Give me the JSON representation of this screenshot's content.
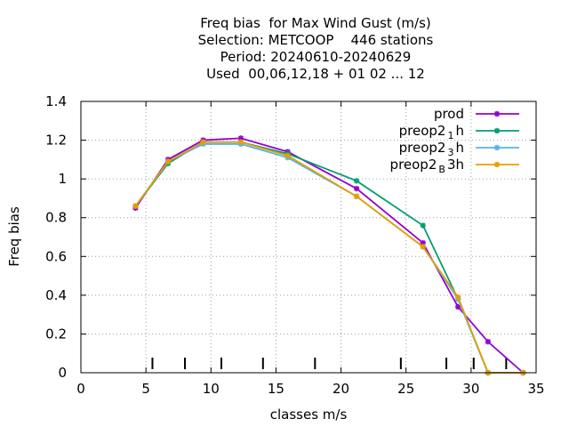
{
  "chart_data": {
    "type": "line",
    "title_lines": [
      "Freq bias  for Max Wind Gust (m/s)",
      "Selection: METCOOP    446 stations",
      "Period: 20240610-20240629",
      "Used  00,06,12,18 + 01 02 ... 12"
    ],
    "xlabel": "classes m/s",
    "ylabel": "Freq bias",
    "xlim": [
      0,
      35
    ],
    "ylim": [
      0,
      1.4
    ],
    "xticks": [
      "0",
      "5",
      "10",
      "15",
      "20",
      "25",
      "30",
      "35"
    ],
    "yticks": [
      "0",
      "0.2",
      "0.4",
      "0.6",
      "0.8",
      "1",
      "1.2",
      "1.4"
    ],
    "grid": true,
    "legend_position": "top-right",
    "class_marks": [
      5.5,
      8,
      10.8,
      14,
      18,
      24.6,
      28.1,
      30.2,
      32.7
    ],
    "series": [
      {
        "name": "prod",
        "color": "#9400d3",
        "x": [
          4.2,
          6.7,
          9.4,
          12.3,
          15.9,
          21.2,
          26.3,
          29.0,
          31.3,
          34.0
        ],
        "y": [
          0.85,
          1.1,
          1.2,
          1.21,
          1.14,
          0.95,
          0.67,
          0.34,
          0.16,
          0.0
        ]
      },
      {
        "name": "preop2",
        "sub": "1",
        "suffix": "h",
        "color": "#009e73",
        "x": [
          4.2,
          6.7,
          9.4,
          12.3,
          15.9,
          21.2,
          26.3,
          29.0,
          31.3,
          34.0
        ],
        "y": [
          0.86,
          1.08,
          1.19,
          1.19,
          1.13,
          0.99,
          0.76,
          0.38,
          0.0,
          0.0
        ]
      },
      {
        "name": "preop2",
        "sub": "3",
        "suffix": "h",
        "color": "#56b4e9",
        "x": [
          4.2,
          6.7,
          9.4,
          12.3,
          15.9,
          21.2,
          26.3,
          29.0,
          31.3,
          34.0
        ],
        "y": [
          0.86,
          1.09,
          1.18,
          1.18,
          1.11,
          0.91,
          0.65,
          0.38,
          0.0,
          0.0
        ]
      },
      {
        "name": "preop2",
        "sub": "B",
        "suffix": "3h",
        "color": "#e69f00",
        "x": [
          4.2,
          6.7,
          9.4,
          12.3,
          15.9,
          21.2,
          26.3,
          29.0,
          31.3,
          34.0
        ],
        "y": [
          0.86,
          1.09,
          1.19,
          1.19,
          1.12,
          0.91,
          0.65,
          0.39,
          0.0,
          0.0
        ]
      }
    ]
  }
}
